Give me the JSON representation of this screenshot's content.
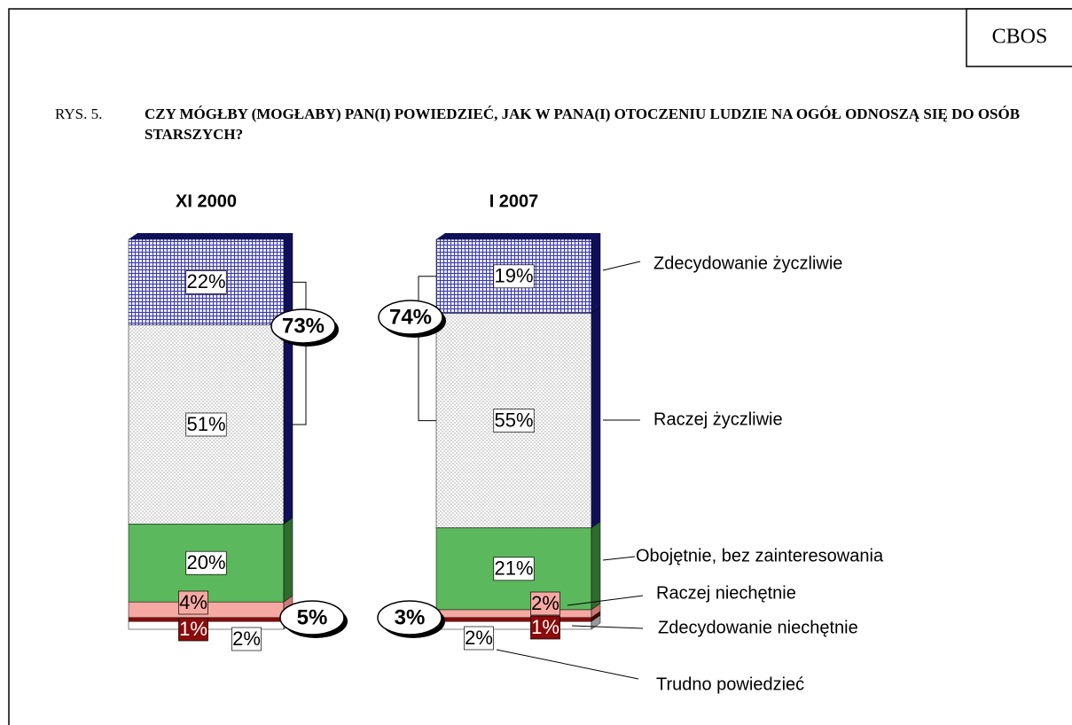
{
  "chart_data": {
    "type": "stacked_bar",
    "source": "CBOS",
    "figure_label": "RYS. 5.",
    "title": "CZY MÓGŁBY (MOGŁABY) PAN(I) POWIEDZIEĆ, JAK W PANA(I) OTOCZENIU LUDZIE NA OGÓŁ ODNOSZĄ SIĘ DO OSÓB STARSZYCH?",
    "categories": [
      "XI 2000",
      "I 2007"
    ],
    "series": [
      {
        "name": "Zdecydowanie życzliwie",
        "color": "#2b2b9a",
        "values": [
          22,
          19
        ],
        "value_labels": [
          "22%",
          "19%"
        ]
      },
      {
        "name": "Raczej życzliwie",
        "color": "#bdbdbd",
        "values": [
          51,
          55
        ],
        "value_labels": [
          "51%",
          "55%"
        ]
      },
      {
        "name": "Obojętnie, bez zainteresowania",
        "color": "#5cb85c",
        "values": [
          20,
          21
        ],
        "value_labels": [
          "20%",
          "21%"
        ]
      },
      {
        "name": "Raczej niechętnie",
        "color": "#f6a9a3",
        "values": [
          4,
          2
        ],
        "value_labels": [
          "4%",
          "2%"
        ]
      },
      {
        "name": "Zdecydowanie niechętnie",
        "color": "#8b0a0a",
        "values": [
          1,
          1
        ],
        "value_labels": [
          "1%",
          "1%"
        ]
      },
      {
        "name": "Trudno powiedzieć",
        "color": "#ffffff",
        "values": [
          2,
          2
        ],
        "value_labels": [
          "2%",
          "2%"
        ]
      }
    ],
    "summary": [
      {
        "values": [
          73,
          74
        ],
        "value_labels": [
          "73%",
          "74%"
        ]
      },
      {
        "values": [
          5,
          3
        ],
        "value_labels": [
          "5%",
          "3%"
        ]
      }
    ]
  }
}
